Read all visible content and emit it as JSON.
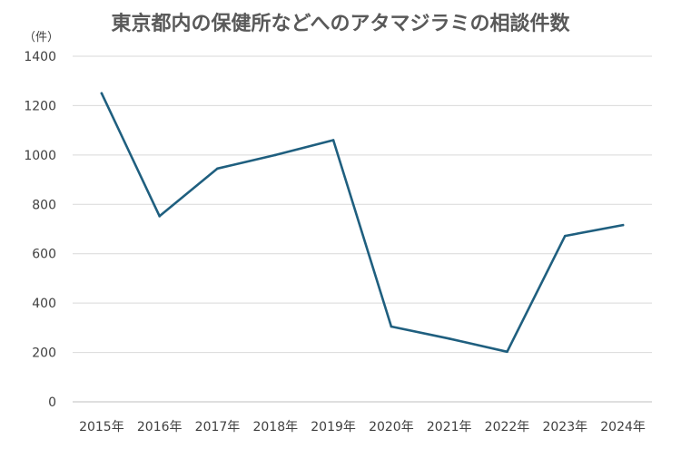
{
  "chart_data": {
    "type": "line",
    "title": "東京都内の保健所などへのアタマジラミの相談件数",
    "unit_label": "（件）",
    "xlabel": "",
    "ylabel": "",
    "categories": [
      "2015年",
      "2016年",
      "2017年",
      "2018年",
      "2019年",
      "2020年",
      "2021年",
      "2022年",
      "2023年",
      "2024年"
    ],
    "series": [
      {
        "values": [
          1250,
          752,
          945,
          1000,
          1060,
          305,
          256,
          203,
          672,
          716
        ]
      }
    ],
    "ylim": [
      0,
      1400
    ],
    "yticks": [
      0,
      200,
      400,
      600,
      800,
      1000,
      1200,
      1400
    ],
    "grid": true,
    "legend": "none",
    "colors": {
      "line": "#1f5f7f",
      "grid": "#d9d9d9",
      "text": "#404040",
      "title": "#595959"
    }
  }
}
